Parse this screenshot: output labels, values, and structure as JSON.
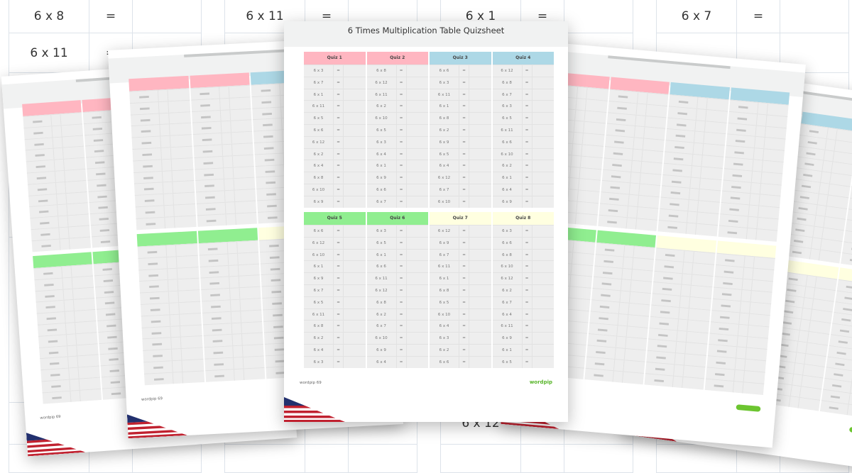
{
  "background": {
    "groups": [
      {
        "rows": [
          {
            "expr": "6 x 8",
            "eq": "="
          },
          {
            "expr": "6 x 11",
            "eq": "="
          },
          {
            "expr": "",
            "eq": ""
          },
          {
            "expr": "",
            "eq": ""
          },
          {
            "expr": "",
            "eq": ""
          },
          {
            "expr": "",
            "eq": ""
          }
        ]
      },
      {
        "rows": [
          {
            "expr": "6 x 11",
            "eq": "="
          },
          {
            "expr": "",
            "eq": ""
          },
          {
            "expr": "",
            "eq": ""
          },
          {
            "expr": "",
            "eq": ""
          },
          {
            "expr": "6 x 5",
            "eq": "="
          },
          {
            "expr": "",
            "eq": ""
          }
        ]
      },
      {
        "rows": [
          {
            "expr": "6 x 1",
            "eq": "="
          },
          {
            "expr": "",
            "eq": ""
          },
          {
            "expr": "",
            "eq": ""
          },
          {
            "expr": "",
            "eq": ""
          },
          {
            "expr": "6 x 12",
            "eq": "="
          },
          {
            "expr": "",
            "eq": ""
          }
        ]
      },
      {
        "rows": [
          {
            "expr": "6 x 7",
            "eq": "="
          },
          {
            "expr": "",
            "eq": ""
          },
          {
            "expr": "",
            "eq": ""
          },
          {
            "expr": "",
            "eq": ""
          },
          {
            "expr": "",
            "eq": ""
          },
          {
            "expr": "",
            "eq": ""
          }
        ]
      }
    ]
  },
  "sheet": {
    "title": "6 Times Multiplication Table Quizsheet",
    "footer": "wordpip 69",
    "logo": "wordpip",
    "eq": "=",
    "quizzes": [
      {
        "label": "Quiz 1",
        "color": "#ffb6c1",
        "items": [
          "6 x 3",
          "6 x 7",
          "6 x 1",
          "6 x 11",
          "6 x 5",
          "6 x 6",
          "6 x 12",
          "6 x 2",
          "6 x 4",
          "6 x 8",
          "6 x 10",
          "6 x 9"
        ]
      },
      {
        "label": "Quiz 2",
        "color": "#ffb6c1",
        "items": [
          "6 x 8",
          "6 x 12",
          "6 x 11",
          "6 x 2",
          "6 x 10",
          "6 x 5",
          "6 x 3",
          "6 x 4",
          "6 x 1",
          "6 x 9",
          "6 x 6",
          "6 x 7"
        ]
      },
      {
        "label": "Quiz 3",
        "color": "#add8e6",
        "items": [
          "6 x 6",
          "6 x 3",
          "6 x 11",
          "6 x 1",
          "6 x 8",
          "6 x 2",
          "6 x 9",
          "6 x 5",
          "6 x 4",
          "6 x 12",
          "6 x 7",
          "6 x 10"
        ]
      },
      {
        "label": "Quiz 4",
        "color": "#add8e6",
        "items": [
          "6 x 12",
          "6 x 8",
          "6 x 7",
          "6 x 3",
          "6 x 5",
          "6 x 11",
          "6 x 6",
          "6 x 10",
          "6 x 2",
          "6 x 1",
          "6 x 4",
          "6 x 9"
        ]
      },
      {
        "label": "Quiz 5",
        "color": "#90ee90",
        "items": [
          "6 x 6",
          "6 x 12",
          "6 x 10",
          "6 x 1",
          "6 x 9",
          "6 x 7",
          "6 x 5",
          "6 x 11",
          "6 x 8",
          "6 x 2",
          "6 x 4",
          "6 x 3"
        ]
      },
      {
        "label": "Quiz 6",
        "color": "#90ee90",
        "items": [
          "6 x 3",
          "6 x 5",
          "6 x 1",
          "6 x 6",
          "6 x 11",
          "6 x 12",
          "6 x 8",
          "6 x 2",
          "6 x 7",
          "6 x 10",
          "6 x 9",
          "6 x 4"
        ]
      },
      {
        "label": "Quiz 7",
        "color": "#ffffe0",
        "items": [
          "6 x 12",
          "6 x 9",
          "6 x 7",
          "6 x 11",
          "6 x 1",
          "6 x 8",
          "6 x 5",
          "6 x 10",
          "6 x 4",
          "6 x 3",
          "6 x 2",
          "6 x 6"
        ]
      },
      {
        "label": "Quiz 8",
        "color": "#ffffe0",
        "items": [
          "6 x 3",
          "6 x 6",
          "6 x 8",
          "6 x 10",
          "6 x 12",
          "6 x 2",
          "6 x 7",
          "6 x 4",
          "6 x 11",
          "6 x 9",
          "6 x 1",
          "6 x 5"
        ]
      }
    ]
  }
}
